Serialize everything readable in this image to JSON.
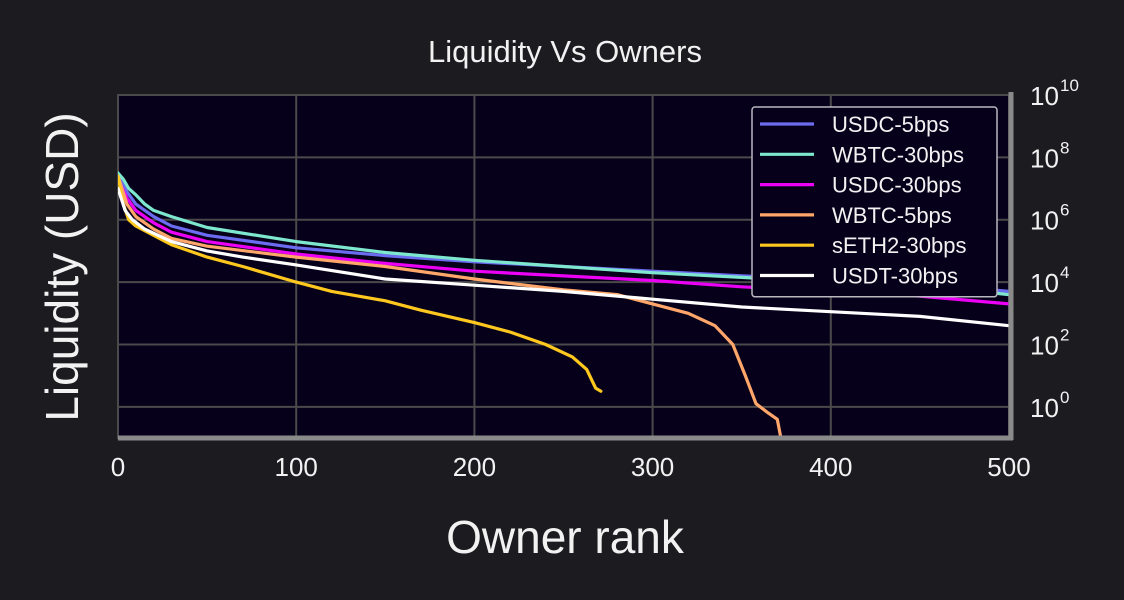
{
  "chart_data": {
    "type": "line",
    "title": "Liquidity Vs Owners",
    "xlabel": "Owner rank",
    "ylabel": "Liquidity (USD)",
    "xlim": [
      0,
      500
    ],
    "ylim_log10": [
      -1,
      10
    ],
    "y_scale": "log",
    "grid": true,
    "legend_position": "top-right",
    "x_ticks": [
      "0",
      "100",
      "200",
      "300",
      "400",
      "500"
    ],
    "y_ticks": [
      {
        "base": "10",
        "exp": "0"
      },
      {
        "base": "10",
        "exp": "2"
      },
      {
        "base": "10",
        "exp": "4"
      },
      {
        "base": "10",
        "exp": "6"
      },
      {
        "base": "10",
        "exp": "8"
      },
      {
        "base": "10",
        "exp": "10"
      }
    ],
    "y_tick_exponents": [
      0,
      2,
      4,
      6,
      8,
      10
    ],
    "colors": {
      "plot_background": "#07001a",
      "figure_background": "#1c1b20",
      "grid": "#4a4a4a",
      "axis": "#8a8a8a"
    },
    "series": [
      {
        "name": "USDC-5bps",
        "color": "#6b6cf0",
        "log10_y_points": [
          [
            0,
            7.4
          ],
          [
            5,
            6.9
          ],
          [
            10,
            6.5
          ],
          [
            20,
            6.1
          ],
          [
            30,
            5.8
          ],
          [
            50,
            5.5
          ],
          [
            100,
            5.1
          ],
          [
            150,
            4.85
          ],
          [
            200,
            4.65
          ],
          [
            250,
            4.5
          ],
          [
            300,
            4.35
          ],
          [
            350,
            4.2
          ],
          [
            400,
            4.1
          ],
          [
            450,
            3.95
          ],
          [
            500,
            3.7
          ]
        ]
      },
      {
        "name": "WBTC-30bps",
        "color": "#7ee8cf",
        "log10_y_points": [
          [
            0,
            7.5
          ],
          [
            3,
            7.3
          ],
          [
            6,
            7.0
          ],
          [
            10,
            6.8
          ],
          [
            15,
            6.5
          ],
          [
            20,
            6.3
          ],
          [
            30,
            6.1
          ],
          [
            50,
            5.75
          ],
          [
            100,
            5.3
          ],
          [
            150,
            4.95
          ],
          [
            200,
            4.7
          ],
          [
            250,
            4.5
          ],
          [
            300,
            4.3
          ],
          [
            350,
            4.15
          ],
          [
            400,
            4.0
          ],
          [
            450,
            3.9
          ],
          [
            500,
            3.6
          ]
        ]
      },
      {
        "name": "USDC-30bps",
        "color": "#ec00f5",
        "log10_y_points": [
          [
            0,
            7.3
          ],
          [
            5,
            6.7
          ],
          [
            10,
            6.3
          ],
          [
            20,
            5.9
          ],
          [
            30,
            5.6
          ],
          [
            50,
            5.3
          ],
          [
            100,
            4.9
          ],
          [
            150,
            4.6
          ],
          [
            200,
            4.35
          ],
          [
            250,
            4.2
          ],
          [
            300,
            4.05
          ],
          [
            350,
            3.85
          ],
          [
            400,
            3.7
          ],
          [
            450,
            3.55
          ],
          [
            500,
            3.3
          ]
        ]
      },
      {
        "name": "WBTC-5bps",
        "color": "#ffa66a",
        "log10_y_points": [
          [
            0,
            7.4
          ],
          [
            5,
            6.5
          ],
          [
            10,
            6.1
          ],
          [
            20,
            5.7
          ],
          [
            30,
            5.4
          ],
          [
            50,
            5.15
          ],
          [
            100,
            4.8
          ],
          [
            150,
            4.5
          ],
          [
            200,
            4.1
          ],
          [
            250,
            3.75
          ],
          [
            280,
            3.6
          ],
          [
            300,
            3.3
          ],
          [
            320,
            3.0
          ],
          [
            335,
            2.6
          ],
          [
            345,
            2.0
          ],
          [
            352,
            1.0
          ],
          [
            358,
            0.1
          ],
          [
            365,
            -0.2
          ],
          [
            370,
            -0.4
          ],
          [
            372,
            -1.0
          ]
        ]
      },
      {
        "name": "sETH2-30bps",
        "color": "#ffc81f",
        "log10_y_points": [
          [
            0,
            7.4
          ],
          [
            3,
            6.5
          ],
          [
            6,
            6.0
          ],
          [
            10,
            5.8
          ],
          [
            20,
            5.5
          ],
          [
            30,
            5.2
          ],
          [
            50,
            4.8
          ],
          [
            70,
            4.5
          ],
          [
            100,
            4.0
          ],
          [
            120,
            3.7
          ],
          [
            150,
            3.4
          ],
          [
            170,
            3.1
          ],
          [
            200,
            2.7
          ],
          [
            220,
            2.4
          ],
          [
            240,
            2.0
          ],
          [
            255,
            1.6
          ],
          [
            263,
            1.2
          ],
          [
            268,
            0.6
          ],
          [
            271,
            0.5
          ]
        ]
      },
      {
        "name": "USDT-30bps",
        "color": "#ffffff",
        "log10_y_points": [
          [
            0,
            7.0
          ],
          [
            4,
            6.3
          ],
          [
            8,
            6.0
          ],
          [
            15,
            5.7
          ],
          [
            30,
            5.3
          ],
          [
            50,
            5.0
          ],
          [
            70,
            4.8
          ],
          [
            100,
            4.55
          ],
          [
            150,
            4.1
          ],
          [
            200,
            3.9
          ],
          [
            250,
            3.7
          ],
          [
            300,
            3.45
          ],
          [
            350,
            3.2
          ],
          [
            400,
            3.05
          ],
          [
            450,
            2.9
          ],
          [
            500,
            2.6
          ]
        ]
      }
    ]
  }
}
